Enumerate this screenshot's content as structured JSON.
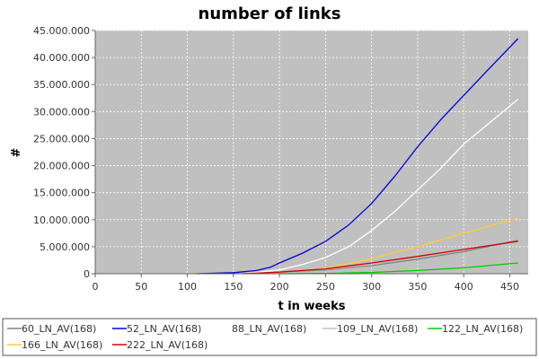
{
  "chart_data": {
    "type": "line",
    "title": "number of links",
    "xlabel": "t in weeks",
    "ylabel": "#",
    "xlim": [
      0,
      470
    ],
    "ylim": [
      0,
      45000000
    ],
    "xticks": [
      0,
      50,
      100,
      150,
      200,
      250,
      300,
      350,
      400,
      450
    ],
    "yticks": [
      0,
      5000000,
      10000000,
      15000000,
      20000000,
      25000000,
      30000000,
      35000000,
      40000000,
      45000000
    ],
    "ytick_labels": [
      "0",
      "5.000.000",
      "10.000.000",
      "15.000.000",
      "20.000.000",
      "25.000.000",
      "30.000.000",
      "35.000.000",
      "40.000.000",
      "45.000.000"
    ],
    "xtick_labels": [
      "0",
      "50",
      "100",
      "150",
      "200",
      "250",
      "300",
      "350",
      "400",
      "450"
    ],
    "grid": true,
    "background": "#c0c0c0",
    "legend_position": "bottom",
    "series": [
      {
        "name": "60_LN_AV(168)",
        "color": "#808080",
        "x": [
          160,
          200,
          250,
          300,
          350,
          400,
          459
        ],
        "y": [
          0,
          150000,
          600000,
          1500000,
          2700000,
          4100000,
          6200000
        ]
      },
      {
        "name": "52_LN_AV(168)",
        "color": "#0000dd",
        "x": [
          110,
          150,
          175,
          190,
          200,
          225,
          250,
          275,
          300,
          325,
          350,
          375,
          400,
          425,
          459
        ],
        "y": [
          0,
          200000,
          600000,
          1200000,
          2000000,
          3800000,
          6000000,
          9000000,
          13000000,
          18000000,
          23500000,
          28500000,
          33000000,
          37500000,
          43500000
        ]
      },
      {
        "name": "88_LN_AV(168)",
        "color": "#ffffff",
        "x": [
          160,
          200,
          225,
          250,
          275,
          300,
          325,
          350,
          375,
          400,
          425,
          459
        ],
        "y": [
          0,
          700000,
          1700000,
          3000000,
          5000000,
          8000000,
          11500000,
          15500000,
          19500000,
          24000000,
          27500000,
          32300000
        ]
      },
      {
        "name": "109_LN_AV(168)",
        "color": "#c0c0c0",
        "x": [
          160,
          200,
          250,
          300,
          350,
          400,
          459
        ],
        "y": [
          0,
          100000,
          500000,
          1300000,
          2400000,
          3800000,
          5700000
        ]
      },
      {
        "name": "122_LN_AV(168)",
        "color": "#00cc00",
        "x": [
          200,
          250,
          300,
          350,
          400,
          459
        ],
        "y": [
          0,
          50000,
          250000,
          600000,
          1100000,
          2000000
        ]
      },
      {
        "name": "166_LN_AV(168)",
        "color": "#ffcc33",
        "x": [
          160,
          200,
          250,
          300,
          350,
          400,
          459
        ],
        "y": [
          0,
          250000,
          1000000,
          2800000,
          5000000,
          7500000,
          10300000
        ]
      },
      {
        "name": "222_LN_AV(168)",
        "color": "#cc0000",
        "x": [
          160,
          200,
          250,
          300,
          350,
          400,
          459
        ],
        "y": [
          0,
          300000,
          900000,
          2000000,
          3200000,
          4500000,
          6000000
        ]
      }
    ]
  }
}
